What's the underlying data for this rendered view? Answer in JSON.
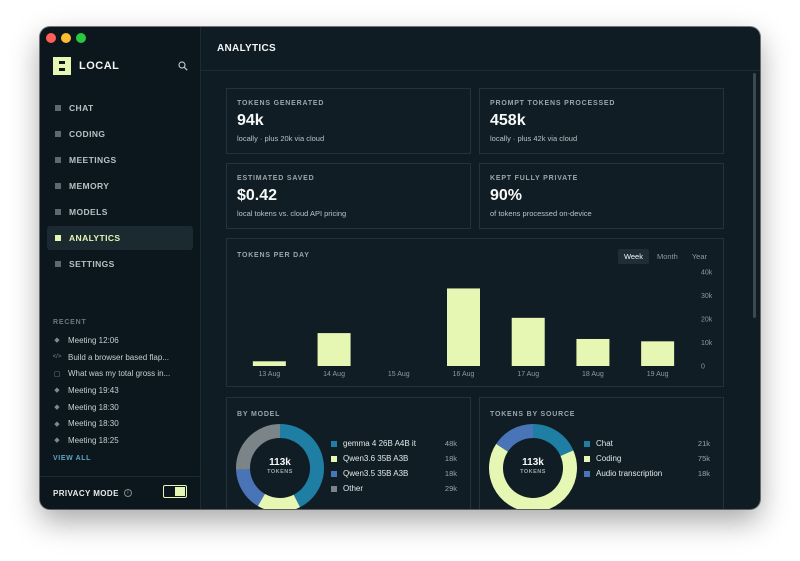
{
  "app": {
    "brand": "LOCAL"
  },
  "sidebar": {
    "nav": [
      {
        "label": "CHAT",
        "active": false
      },
      {
        "label": "CODING",
        "active": false
      },
      {
        "label": "MEETINGS",
        "active": false
      },
      {
        "label": "MEMORY",
        "active": false
      },
      {
        "label": "MODELS",
        "active": false
      },
      {
        "label": "ANALYTICS",
        "active": true
      },
      {
        "label": "SETTINGS",
        "active": false
      }
    ],
    "recent_title": "RECENT",
    "recent": [
      {
        "icon": "meeting-icon",
        "label": "Meeting 12:06"
      },
      {
        "icon": "code-icon",
        "label": "Build a browser based flap..."
      },
      {
        "icon": "chat-icon",
        "label": "What was my total gross in..."
      },
      {
        "icon": "meeting-icon",
        "label": "Meeting 19:43"
      },
      {
        "icon": "meeting-icon",
        "label": "Meeting 18:30"
      },
      {
        "icon": "meeting-icon",
        "label": "Meeting 18:30"
      },
      {
        "icon": "meeting-icon",
        "label": "Meeting 18:25"
      }
    ],
    "view_all": "VIEW ALL",
    "privacy_mode": "PRIVACY MODE",
    "privacy_on": true
  },
  "main": {
    "title": "ANALYTICS"
  },
  "stats": [
    {
      "label": "TOKENS GENERATED",
      "value": "94k",
      "sub": "locally · plus 20k via cloud"
    },
    {
      "label": "PROMPT TOKENS PROCESSED",
      "value": "458k",
      "sub": "locally · plus 42k via cloud"
    },
    {
      "label": "ESTIMATED SAVED",
      "value": "$0.42",
      "sub": "local tokens vs. cloud API pricing"
    },
    {
      "label": "KEPT FULLY PRIVATE",
      "value": "90%",
      "sub": "of tokens processed on-device"
    }
  ],
  "tokens_per_day": {
    "title": "TOKENS PER DAY",
    "ranges": [
      "Week",
      "Month",
      "Year"
    ],
    "selected_range": "Week"
  },
  "chart_data": [
    {
      "type": "bar",
      "title": "TOKENS PER DAY",
      "categories": [
        "13 Aug",
        "14 Aug",
        "15 Aug",
        "16 Aug",
        "17 Aug",
        "18 Aug",
        "19 Aug"
      ],
      "values": [
        2000,
        14000,
        0,
        33000,
        20500,
        11500,
        10500
      ],
      "ylim": [
        0,
        40000
      ],
      "yticks": [
        0,
        10000,
        20000,
        30000,
        40000
      ],
      "ytick_labels": [
        "0",
        "10k",
        "20k",
        "30k",
        "40k"
      ],
      "bar_color": "#e6f7b3",
      "y_axis": "right"
    },
    {
      "type": "pie",
      "title": "BY MODEL",
      "center_value": "113k",
      "center_label": "TOKENS",
      "series": [
        {
          "name": "gemma 4 26B A4B it",
          "value": 48,
          "value_label": "48k",
          "color": "#1f7ea3"
        },
        {
          "name": "Qwen3.6 35B A3B",
          "value": 18,
          "value_label": "18k",
          "color": "#e6f7b3"
        },
        {
          "name": "Qwen3.5 35B A3B",
          "value": 18,
          "value_label": "18k",
          "color": "#4a74b8"
        },
        {
          "name": "Other",
          "value": 29,
          "value_label": "29k",
          "color": "#7b8488"
        }
      ]
    },
    {
      "type": "pie",
      "title": "TOKENS BY SOURCE",
      "center_value": "113k",
      "center_label": "TOKENS",
      "series": [
        {
          "name": "Chat",
          "value": 21,
          "value_label": "21k",
          "color": "#1f7ea3"
        },
        {
          "name": "Coding",
          "value": 75,
          "value_label": "75k",
          "color": "#e6f7b3"
        },
        {
          "name": "Audio transcription",
          "value": 18,
          "value_label": "18k",
          "color": "#4a74b8"
        }
      ]
    }
  ]
}
